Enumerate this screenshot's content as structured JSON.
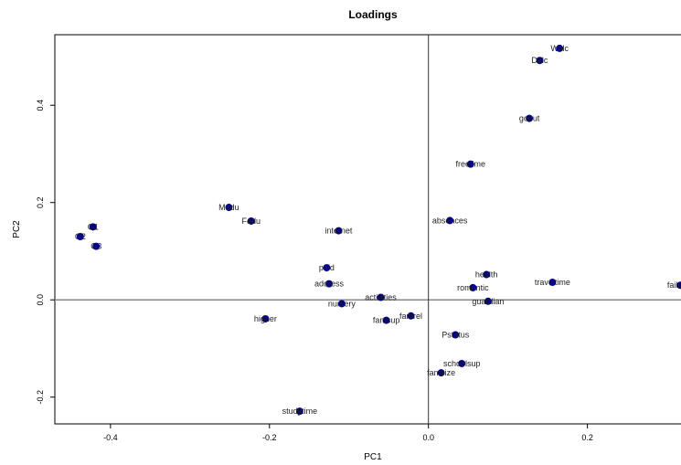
{
  "chart_data": {
    "type": "scatter",
    "title": "Loadings",
    "xlabel": "PC1",
    "ylabel": "PC2",
    "xlim": [
      -0.47,
      0.335
    ],
    "ylim": [
      -0.255,
      0.545
    ],
    "x_ticks": [
      -0.4,
      -0.2,
      0.0,
      0.2
    ],
    "x_tick_labels": [
      "-0.4",
      "-0.2",
      "0.0",
      "0.2"
    ],
    "y_ticks": [
      -0.2,
      0.0,
      0.2,
      0.4
    ],
    "y_tick_labels": [
      "-0.2",
      "0.0",
      "0.2",
      "0.4"
    ],
    "reference_lines": {
      "x": 0,
      "y": 0
    },
    "grid": false,
    "point_color": "#00008B",
    "points": [
      {
        "label": "Walc",
        "x": 0.165,
        "y": 0.517
      },
      {
        "label": "Dalc",
        "x": 0.14,
        "y": 0.492
      },
      {
        "label": "goout",
        "x": 0.127,
        "y": 0.373
      },
      {
        "label": "freetime",
        "x": 0.053,
        "y": 0.279
      },
      {
        "label": "absences",
        "x": 0.027,
        "y": 0.163
      },
      {
        "label": "health",
        "x": 0.073,
        "y": 0.052
      },
      {
        "label": "romantic",
        "x": 0.056,
        "y": 0.025
      },
      {
        "label": "traveltime",
        "x": 0.156,
        "y": 0.036
      },
      {
        "label": "failures",
        "x": 0.317,
        "y": 0.03
      },
      {
        "label": "guardian",
        "x": 0.075,
        "y": -0.003
      },
      {
        "label": "Pstatus",
        "x": 0.034,
        "y": -0.072
      },
      {
        "label": "schoolsup",
        "x": 0.042,
        "y": -0.131
      },
      {
        "label": "famsize",
        "x": 0.016,
        "y": -0.15
      },
      {
        "label": "famrel",
        "x": -0.022,
        "y": -0.033
      },
      {
        "label": "famsup",
        "x": -0.053,
        "y": -0.042
      },
      {
        "label": "activities",
        "x": -0.06,
        "y": 0.005
      },
      {
        "label": "nursery",
        "x": -0.109,
        "y": -0.008
      },
      {
        "label": "internet",
        "x": -0.113,
        "y": 0.142
      },
      {
        "label": "paid",
        "x": -0.128,
        "y": 0.066
      },
      {
        "label": "address",
        "x": -0.125,
        "y": 0.033
      },
      {
        "label": "higher",
        "x": -0.205,
        "y": -0.039
      },
      {
        "label": "studytime",
        "x": -0.162,
        "y": -0.229
      },
      {
        "label": "Medu",
        "x": -0.251,
        "y": 0.19
      },
      {
        "label": "Fedu",
        "x": -0.223,
        "y": 0.162
      },
      {
        "label": "G1",
        "x": -0.422,
        "y": 0.15
      },
      {
        "label": "G2",
        "x": -0.438,
        "y": 0.13
      },
      {
        "label": "G3",
        "x": -0.418,
        "y": 0.11
      }
    ]
  }
}
